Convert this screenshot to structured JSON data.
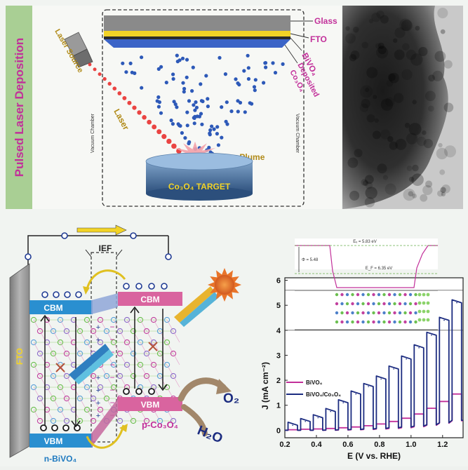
{
  "top": {
    "side_title": "Pulsed Laser Deposition",
    "laser_source": "Laser Source",
    "laser": "Laser",
    "layers": {
      "glass": "Glass",
      "fto": "FTO",
      "bivo4": "BiVO₄",
      "deposited": "Deposited",
      "co3o4": "Co₃O₄"
    },
    "vacuum_chamber": "Vacuum Chamber",
    "plasma_plume": "Plasma Plume",
    "target": "Co₃O₄ TARGET"
  },
  "band": {
    "ief": "IEF",
    "cbm": "CBM",
    "vbm": "VBM",
    "fto": "FTO",
    "n_label": "n-BiVO₄",
    "p_label": "p-Co₃O₄",
    "o2": "O₂",
    "h2o": "H₂O"
  },
  "chart_data": {
    "type": "line",
    "xlabel": "E (V vs. RHE)",
    "ylabel": "J (mA cm⁻²)",
    "xlim": [
      0.2,
      1.33
    ],
    "ylim": [
      -0.3,
      6.1
    ],
    "xticks": [
      "0.2",
      "0.4",
      "0.6",
      "0.8",
      "1.0",
      "1.2"
    ],
    "yticks": [
      "0",
      "1",
      "2",
      "3",
      "4",
      "5",
      "6"
    ],
    "legend": "bottom-left",
    "series": [
      {
        "name": "BiVO₄",
        "color": "#c2309a",
        "chop_x": [
          0.25,
          0.33,
          0.41,
          0.49,
          0.57,
          0.65,
          0.73,
          0.81,
          0.89,
          0.97,
          1.05,
          1.13,
          1.21,
          1.29
        ],
        "on_values": [
          0.02,
          0.04,
          0.05,
          0.07,
          0.1,
          0.13,
          0.18,
          0.25,
          0.35,
          0.48,
          0.65,
          0.88,
          1.15,
          1.45
        ],
        "dark_values": [
          0,
          0,
          0,
          0,
          0.01,
          0.02,
          0.03,
          0.05,
          0.07,
          0.1,
          0.14,
          0.2,
          0.28,
          0.38
        ]
      },
      {
        "name": "BiVO₄/Co₃O₄",
        "color": "#1c2c80",
        "chop_x": [
          0.25,
          0.33,
          0.41,
          0.49,
          0.57,
          0.65,
          0.73,
          0.81,
          0.89,
          0.97,
          1.05,
          1.13,
          1.21,
          1.29
        ],
        "on_values": [
          0.2,
          0.35,
          0.5,
          0.75,
          1.1,
          1.45,
          1.75,
          2.05,
          2.45,
          2.85,
          3.3,
          3.8,
          4.4,
          5.1
        ],
        "dark_values": [
          0.0,
          0.0,
          0.0,
          0.01,
          0.02,
          0.03,
          0.05,
          0.07,
          0.1,
          0.13,
          0.17,
          0.22,
          0.3,
          0.4
        ]
      }
    ]
  },
  "inset": {
    "ev": "Eᵥ = 5.83 eV",
    "ef": "E_F = 6.35 eV",
    "phi": "Φ = 5.48"
  }
}
